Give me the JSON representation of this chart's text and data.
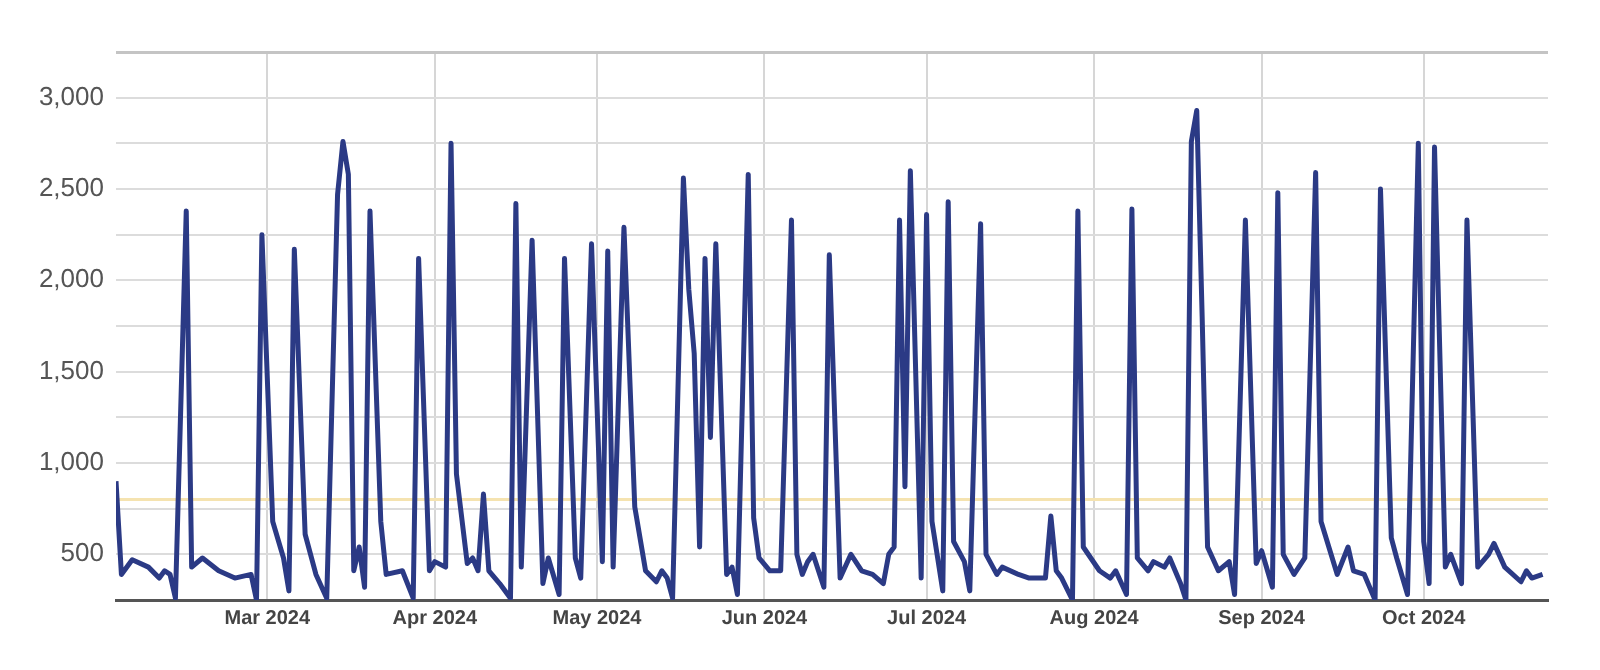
{
  "chart_data": {
    "type": "line",
    "color": "#2b3a85",
    "grid": true,
    "legend": false,
    "marker": "none",
    "line_style": "solid",
    "xlim": [
      "2024-02-02",
      "2024-10-24"
    ],
    "xticks": [
      {
        "value": "2024-03-01",
        "label": "Mar 2024"
      },
      {
        "value": "2024-04-01",
        "label": "Apr 2024"
      },
      {
        "value": "2024-05-01",
        "label": "May 2024"
      },
      {
        "value": "2024-06-01",
        "label": "Jun 2024"
      },
      {
        "value": "2024-07-01",
        "label": "Jul 2024"
      },
      {
        "value": "2024-08-01",
        "label": "Aug 2024"
      },
      {
        "value": "2024-09-01",
        "label": "Sep 2024"
      },
      {
        "value": "2024-10-01",
        "label": "Oct 2024"
      }
    ],
    "ylim": [
      250,
      3250
    ],
    "yticks": [
      {
        "value": 250,
        "label": null
      },
      {
        "value": 500,
        "label": "500"
      },
      {
        "value": 750,
        "label": null
      },
      {
        "value": 1000,
        "label": "1,000"
      },
      {
        "value": 1250,
        "label": null
      },
      {
        "value": 1500,
        "label": "1,500"
      },
      {
        "value": 1750,
        "label": null
      },
      {
        "value": 2000,
        "label": "2,000"
      },
      {
        "value": 2250,
        "label": null
      },
      {
        "value": 2500,
        "label": "2,500"
      },
      {
        "value": 2750,
        "label": null
      },
      {
        "value": 3000,
        "label": "3,000"
      },
      {
        "value": 3250,
        "label": null
      }
    ],
    "ref_lines": [
      {
        "axis": "y",
        "value": 800,
        "color": "#f5e3b0"
      }
    ],
    "x": [
      "2024-02-02",
      "2024-02-03",
      "2024-02-05",
      "2024-02-08",
      "2024-02-10",
      "2024-02-11",
      "2024-02-12",
      "2024-02-13",
      "2024-02-15",
      "2024-02-16",
      "2024-02-18",
      "2024-02-21",
      "2024-02-24",
      "2024-02-27",
      "2024-02-28",
      "2024-02-29",
      "2024-03-02",
      "2024-03-04",
      "2024-03-05",
      "2024-03-06",
      "2024-03-08",
      "2024-03-10",
      "2024-03-12",
      "2024-03-14",
      "2024-03-15",
      "2024-03-16",
      "2024-03-17",
      "2024-03-18",
      "2024-03-19",
      "2024-03-20",
      "2024-03-22",
      "2024-03-23",
      "2024-03-26",
      "2024-03-28",
      "2024-03-29",
      "2024-03-31",
      "2024-04-01",
      "2024-04-03",
      "2024-04-04",
      "2024-04-05",
      "2024-04-07",
      "2024-04-08",
      "2024-04-09",
      "2024-04-10",
      "2024-04-11",
      "2024-04-13",
      "2024-04-15",
      "2024-04-16",
      "2024-04-17",
      "2024-04-19",
      "2024-04-21",
      "2024-04-22",
      "2024-04-24",
      "2024-04-25",
      "2024-04-27",
      "2024-04-28",
      "2024-04-30",
      "2024-05-02",
      "2024-05-03",
      "2024-05-04",
      "2024-05-06",
      "2024-05-08",
      "2024-05-10",
      "2024-05-12",
      "2024-05-13",
      "2024-05-14",
      "2024-05-15",
      "2024-05-17",
      "2024-05-18",
      "2024-05-19",
      "2024-05-20",
      "2024-05-21",
      "2024-05-22",
      "2024-05-23",
      "2024-05-25",
      "2024-05-26",
      "2024-05-27",
      "2024-05-29",
      "2024-05-30",
      "2024-05-31",
      "2024-06-02",
      "2024-06-04",
      "2024-06-06",
      "2024-06-07",
      "2024-06-08",
      "2024-06-09",
      "2024-06-10",
      "2024-06-12",
      "2024-06-13",
      "2024-06-15",
      "2024-06-17",
      "2024-06-19",
      "2024-06-21",
      "2024-06-23",
      "2024-06-24",
      "2024-06-25",
      "2024-06-26",
      "2024-06-27",
      "2024-06-28",
      "2024-06-30",
      "2024-07-01",
      "2024-07-02",
      "2024-07-04",
      "2024-07-05",
      "2024-07-06",
      "2024-07-08",
      "2024-07-09",
      "2024-07-11",
      "2024-07-12",
      "2024-07-14",
      "2024-07-15",
      "2024-07-18",
      "2024-07-20",
      "2024-07-21",
      "2024-07-23",
      "2024-07-24",
      "2024-07-25",
      "2024-07-26",
      "2024-07-28",
      "2024-07-29",
      "2024-07-30",
      "2024-08-02",
      "2024-08-04",
      "2024-08-05",
      "2024-08-07",
      "2024-08-08",
      "2024-08-09",
      "2024-08-11",
      "2024-08-12",
      "2024-08-14",
      "2024-08-15",
      "2024-08-17",
      "2024-08-18",
      "2024-08-19",
      "2024-08-20",
      "2024-08-21",
      "2024-08-22",
      "2024-08-24",
      "2024-08-26",
      "2024-08-27",
      "2024-08-29",
      "2024-08-31",
      "2024-09-01",
      "2024-09-03",
      "2024-09-04",
      "2024-09-05",
      "2024-09-07",
      "2024-09-09",
      "2024-09-11",
      "2024-09-12",
      "2024-09-15",
      "2024-09-17",
      "2024-09-18",
      "2024-09-20",
      "2024-09-22",
      "2024-09-23",
      "2024-09-25",
      "2024-09-26",
      "2024-09-28",
      "2024-09-30",
      "2024-10-01",
      "2024-10-02",
      "2024-10-03",
      "2024-10-05",
      "2024-10-06",
      "2024-10-08",
      "2024-10-09",
      "2024-10-11",
      "2024-10-13",
      "2024-10-14",
      "2024-10-16",
      "2024-10-19",
      "2024-10-20",
      "2024-10-21",
      "2024-10-23"
    ],
    "values": [
      900,
      390,
      470,
      430,
      370,
      410,
      390,
      260,
      2380,
      430,
      480,
      410,
      370,
      390,
      250,
      2250,
      680,
      480,
      300,
      2170,
      610,
      390,
      260,
      2470,
      2760,
      2580,
      410,
      540,
      320,
      2380,
      680,
      390,
      410,
      260,
      2120,
      410,
      460,
      430,
      2750,
      940,
      450,
      480,
      410,
      830,
      410,
      340,
      260,
      2420,
      430,
      2220,
      340,
      480,
      280,
      2120,
      480,
      370,
      2200,
      460,
      2160,
      430,
      2290,
      760,
      410,
      350,
      410,
      370,
      260,
      2560,
      1950,
      1600,
      540,
      2120,
      1140,
      2200,
      390,
      430,
      280,
      2580,
      700,
      480,
      410,
      410,
      2330,
      500,
      390,
      460,
      500,
      320,
      2140,
      370,
      500,
      410,
      390,
      340,
      500,
      540,
      2330,
      870,
      2600,
      370,
      2360,
      680,
      300,
      2430,
      570,
      460,
      300,
      2310,
      500,
      390,
      430,
      390,
      370,
      370,
      370,
      710,
      410,
      370,
      250,
      2380,
      540,
      410,
      370,
      410,
      280,
      2390,
      480,
      410,
      460,
      430,
      480,
      340,
      250,
      2760,
      2930,
      1800,
      540,
      410,
      460,
      280,
      2330,
      450,
      520,
      320,
      2480,
      500,
      390,
      480,
      2590,
      680,
      390,
      540,
      410,
      390,
      250,
      2500,
      590,
      480,
      280,
      2750,
      570,
      340,
      2730,
      430,
      500,
      340,
      2330,
      430,
      500,
      560,
      430,
      350,
      410,
      370,
      390
    ]
  }
}
